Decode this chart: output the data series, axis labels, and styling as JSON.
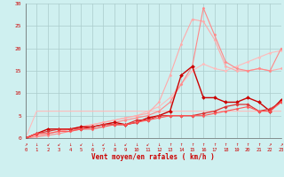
{
  "xlabel": "Vent moyen/en rafales ( km/h )",
  "background_color": "#cff0f0",
  "grid_color": "#aacccc",
  "xlim": [
    0,
    23
  ],
  "ylim": [
    0,
    30
  ],
  "xticks": [
    0,
    1,
    2,
    3,
    4,
    5,
    6,
    7,
    8,
    9,
    10,
    11,
    12,
    13,
    14,
    15,
    16,
    17,
    18,
    19,
    20,
    21,
    22,
    23
  ],
  "yticks": [
    0,
    5,
    10,
    15,
    20,
    25,
    30
  ],
  "series": [
    {
      "x": [
        0,
        1,
        2,
        3,
        4,
        5,
        6,
        7,
        8,
        9,
        10,
        11,
        12,
        13,
        14,
        15,
        16,
        17,
        18,
        19,
        20,
        21,
        22,
        23
      ],
      "y": [
        0,
        6,
        6,
        6,
        6,
        6,
        6,
        6,
        6,
        6,
        6,
        6,
        6,
        6,
        6,
        6,
        6,
        6,
        6,
        6,
        6,
        6,
        6,
        6
      ],
      "color": "#ffbbbb",
      "marker": null,
      "linewidth": 0.8,
      "markersize": 0
    },
    {
      "x": [
        0,
        1,
        2,
        3,
        4,
        5,
        6,
        7,
        8,
        9,
        10,
        11,
        12,
        13,
        14,
        15,
        16,
        17,
        18,
        19,
        20,
        21,
        22,
        23
      ],
      "y": [
        0,
        0.5,
        1,
        1.5,
        2,
        2.5,
        3,
        3.5,
        4,
        4.5,
        5,
        6,
        7,
        9,
        12,
        15,
        16.5,
        15.5,
        15,
        16,
        17,
        18,
        19,
        19.5
      ],
      "color": "#ffbbbb",
      "marker": "D",
      "linewidth": 0.8,
      "markersize": 1.5
    },
    {
      "x": [
        0,
        1,
        2,
        3,
        4,
        5,
        6,
        7,
        8,
        9,
        10,
        11,
        12,
        13,
        14,
        15,
        16,
        17,
        18,
        19,
        20,
        21,
        22,
        23
      ],
      "y": [
        0,
        0.5,
        1,
        1.5,
        2,
        2.5,
        3,
        3.5,
        4,
        4.5,
        5,
        5.5,
        8,
        14,
        21,
        26.5,
        26,
        22,
        16,
        15,
        15,
        15.5,
        15,
        15.5
      ],
      "color": "#ffaaaa",
      "marker": "D",
      "linewidth": 0.8,
      "markersize": 1.5
    },
    {
      "x": [
        0,
        1,
        2,
        3,
        4,
        5,
        6,
        7,
        8,
        9,
        10,
        11,
        12,
        13,
        14,
        15,
        16,
        17,
        18,
        19,
        20,
        21,
        22,
        23
      ],
      "y": [
        0,
        0.3,
        0.6,
        1,
        1.5,
        2,
        2.5,
        3,
        3.5,
        4,
        4.5,
        5,
        6,
        8,
        12,
        16,
        29,
        23,
        17,
        15.5,
        15,
        15.5,
        15,
        20
      ],
      "color": "#ff8888",
      "marker": "D",
      "linewidth": 0.8,
      "markersize": 1.5
    },
    {
      "x": [
        0,
        1,
        2,
        3,
        4,
        5,
        6,
        7,
        8,
        9,
        10,
        11,
        12,
        13,
        14,
        15,
        16,
        17,
        18,
        19,
        20,
        21,
        22,
        23
      ],
      "y": [
        0,
        1,
        2,
        2,
        2,
        2.5,
        2.5,
        3,
        3.5,
        3,
        3.5,
        4.5,
        5,
        6,
        14,
        16,
        9,
        9,
        8,
        8,
        9,
        8,
        6,
        8.5
      ],
      "color": "#cc0000",
      "marker": "D",
      "linewidth": 1.0,
      "markersize": 2.0
    },
    {
      "x": [
        0,
        1,
        2,
        3,
        4,
        5,
        6,
        7,
        8,
        9,
        10,
        11,
        12,
        13,
        14,
        15,
        16,
        17,
        18,
        19,
        20,
        21,
        22,
        23
      ],
      "y": [
        0,
        1,
        1.5,
        2,
        2,
        2,
        2.5,
        3,
        3,
        3,
        4,
        4,
        5,
        5,
        5,
        5,
        5.5,
        6,
        7,
        7.5,
        7.5,
        6,
        6.5,
        8
      ],
      "color": "#dd3333",
      "marker": "D",
      "linewidth": 0.9,
      "markersize": 1.8
    },
    {
      "x": [
        0,
        1,
        2,
        3,
        4,
        5,
        6,
        7,
        8,
        9,
        10,
        11,
        12,
        13,
        14,
        15,
        16,
        17,
        18,
        19,
        20,
        21,
        22,
        23
      ],
      "y": [
        0,
        1,
        1,
        1.5,
        1.5,
        2,
        2,
        2.5,
        3,
        3,
        3.5,
        4,
        4.5,
        5,
        5,
        5,
        5,
        5.5,
        6,
        6.5,
        7,
        6,
        6,
        8
      ],
      "color": "#ff5555",
      "marker": "D",
      "linewidth": 0.8,
      "markersize": 1.5
    }
  ],
  "arrow_ticks": [
    "↗",
    "↓",
    "↙",
    "↙",
    "↓",
    "↙",
    "↓",
    "↙",
    "↓",
    "↙",
    "↓",
    "↙",
    "↓",
    "↑",
    "↑",
    "↑",
    "↑",
    "↑",
    "↑",
    "↑",
    "↑",
    "↑",
    "↗",
    "↗"
  ]
}
